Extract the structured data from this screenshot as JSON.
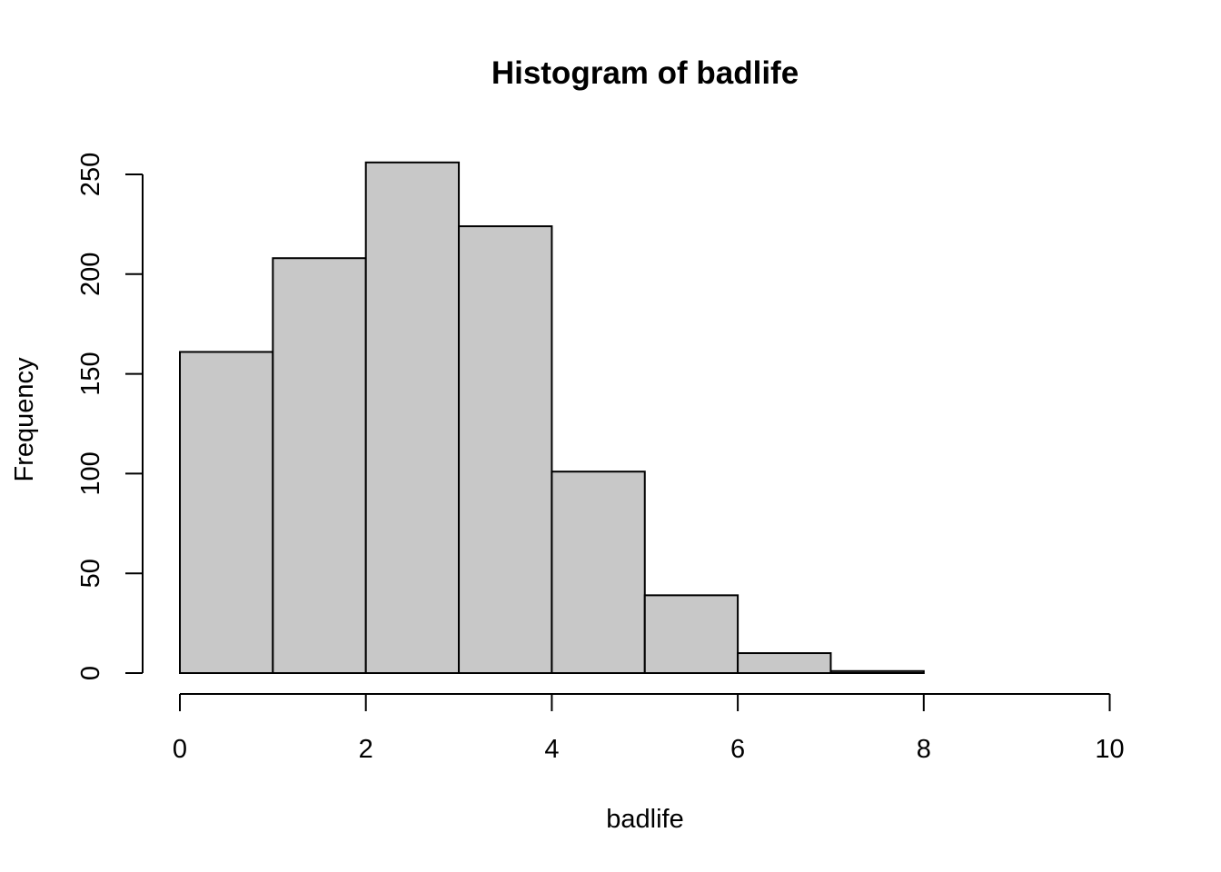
{
  "chart_data": {
    "type": "bar",
    "title": "Histogram of badlife",
    "xlabel": "badlife",
    "ylabel": "Frequency",
    "bins": [
      {
        "x0": 0,
        "x1": 1,
        "count": 161
      },
      {
        "x0": 1,
        "x1": 2,
        "count": 208
      },
      {
        "x0": 2,
        "x1": 3,
        "count": 256
      },
      {
        "x0": 3,
        "x1": 4,
        "count": 224
      },
      {
        "x0": 4,
        "x1": 5,
        "count": 101
      },
      {
        "x0": 5,
        "x1": 6,
        "count": 39
      },
      {
        "x0": 6,
        "x1": 7,
        "count": 10
      },
      {
        "x0": 7,
        "x1": 8,
        "count": 1
      }
    ],
    "xlim": [
      0,
      10
    ],
    "ylim": [
      0,
      256
    ],
    "x_ticks": [
      0,
      2,
      4,
      6,
      8,
      10
    ],
    "y_ticks": [
      0,
      50,
      100,
      150,
      200,
      250
    ],
    "bar_color": "#c8c8c8",
    "grid": false
  }
}
